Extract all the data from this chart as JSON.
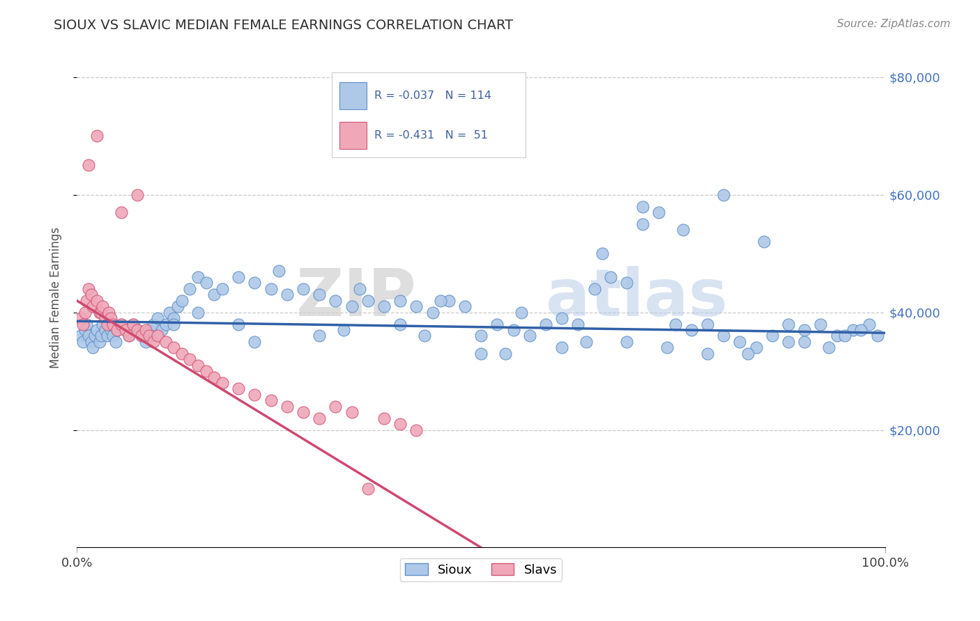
{
  "title": "SIOUX VS SLAVIC MEDIAN FEMALE EARNINGS CORRELATION CHART",
  "source_text": "Source: ZipAtlas.com",
  "ylabel": "Median Female Earnings",
  "xlim": [
    0,
    1.0
  ],
  "ylim": [
    0,
    85000
  ],
  "ytick_values": [
    20000,
    40000,
    60000,
    80000
  ],
  "background_color": "#ffffff",
  "grid_color": "#c8c8c8",
  "sioux_color": "#aec8e8",
  "slavs_color": "#f0a8b8",
  "sioux_edge_color": "#6090c8",
  "slavs_edge_color": "#d05878",
  "sioux_line_color": "#3060a8",
  "slavs_line_color": "#d04870",
  "title_color": "#303030",
  "axis_label_color": "#505050",
  "tick_label_color_right": "#4472c4",
  "legend_series1": "Sioux",
  "legend_series2": "Slavs",
  "sioux_scatter_x": [
    0.005,
    0.008,
    0.01,
    0.012,
    0.015,
    0.018,
    0.02,
    0.022,
    0.025,
    0.028,
    0.03,
    0.032,
    0.035,
    0.038,
    0.04,
    0.042,
    0.045,
    0.048,
    0.05,
    0.055,
    0.06,
    0.065,
    0.07,
    0.075,
    0.08,
    0.085,
    0.09,
    0.095,
    0.1,
    0.105,
    0.11,
    0.115,
    0.12,
    0.125,
    0.13,
    0.14,
    0.15,
    0.16,
    0.17,
    0.18,
    0.2,
    0.22,
    0.24,
    0.26,
    0.28,
    0.3,
    0.32,
    0.34,
    0.36,
    0.38,
    0.4,
    0.42,
    0.44,
    0.46,
    0.48,
    0.5,
    0.52,
    0.54,
    0.56,
    0.58,
    0.6,
    0.62,
    0.64,
    0.66,
    0.68,
    0.7,
    0.72,
    0.74,
    0.76,
    0.78,
    0.8,
    0.82,
    0.84,
    0.86,
    0.88,
    0.9,
    0.92,
    0.94,
    0.96,
    0.98,
    0.25,
    0.35,
    0.45,
    0.55,
    0.65,
    0.75,
    0.85,
    0.95,
    0.15,
    0.2,
    0.3,
    0.4,
    0.5,
    0.6,
    0.7,
    0.8,
    0.9,
    0.12,
    0.22,
    0.33,
    0.43,
    0.53,
    0.63,
    0.73,
    0.83,
    0.93,
    0.97,
    0.99,
    0.88,
    0.78,
    0.68
  ],
  "sioux_scatter_y": [
    36000,
    35000,
    37000,
    38000,
    36000,
    35000,
    34000,
    36000,
    37000,
    35000,
    36000,
    38000,
    37000,
    36000,
    38000,
    37000,
    36000,
    35000,
    37000,
    38000,
    37000,
    36000,
    38000,
    37000,
    36000,
    35000,
    37000,
    38000,
    39000,
    37000,
    38000,
    40000,
    39000,
    41000,
    42000,
    44000,
    46000,
    45000,
    43000,
    44000,
    46000,
    45000,
    44000,
    43000,
    44000,
    43000,
    42000,
    41000,
    42000,
    41000,
    42000,
    41000,
    40000,
    42000,
    41000,
    36000,
    38000,
    37000,
    36000,
    38000,
    39000,
    38000,
    44000,
    46000,
    45000,
    55000,
    57000,
    38000,
    37000,
    38000,
    36000,
    35000,
    34000,
    36000,
    35000,
    37000,
    38000,
    36000,
    37000,
    38000,
    47000,
    44000,
    42000,
    40000,
    50000,
    54000,
    52000,
    36000,
    40000,
    38000,
    36000,
    38000,
    33000,
    34000,
    58000,
    60000,
    35000,
    38000,
    35000,
    37000,
    36000,
    33000,
    35000,
    34000,
    33000,
    34000,
    37000,
    36000,
    38000,
    33000,
    35000
  ],
  "slavs_scatter_x": [
    0.005,
    0.008,
    0.01,
    0.012,
    0.015,
    0.018,
    0.02,
    0.025,
    0.028,
    0.03,
    0.032,
    0.035,
    0.038,
    0.04,
    0.042,
    0.045,
    0.05,
    0.055,
    0.06,
    0.065,
    0.07,
    0.075,
    0.08,
    0.085,
    0.09,
    0.095,
    0.1,
    0.11,
    0.12,
    0.13,
    0.14,
    0.15,
    0.16,
    0.17,
    0.18,
    0.2,
    0.22,
    0.24,
    0.26,
    0.28,
    0.3,
    0.32,
    0.34,
    0.36,
    0.38,
    0.4,
    0.42,
    0.015,
    0.025,
    0.055,
    0.075
  ],
  "slavs_scatter_y": [
    39000,
    38000,
    40000,
    42000,
    44000,
    43000,
    41000,
    42000,
    40000,
    40000,
    41000,
    39000,
    38000,
    40000,
    39000,
    38000,
    37000,
    38000,
    37000,
    36000,
    38000,
    37000,
    36000,
    37000,
    36000,
    35000,
    36000,
    35000,
    34000,
    33000,
    32000,
    31000,
    30000,
    29000,
    28000,
    27000,
    26000,
    25000,
    24000,
    23000,
    22000,
    24000,
    23000,
    10000,
    22000,
    21000,
    20000,
    65000,
    70000,
    57000,
    60000
  ],
  "sioux_line_x0": 0.0,
  "sioux_line_x1": 1.0,
  "sioux_line_y0": 38500,
  "sioux_line_y1": 36500,
  "slavs_line_x0": 0.0,
  "slavs_line_x1": 0.5,
  "slavs_line_y0": 42000,
  "slavs_line_y1": 0
}
